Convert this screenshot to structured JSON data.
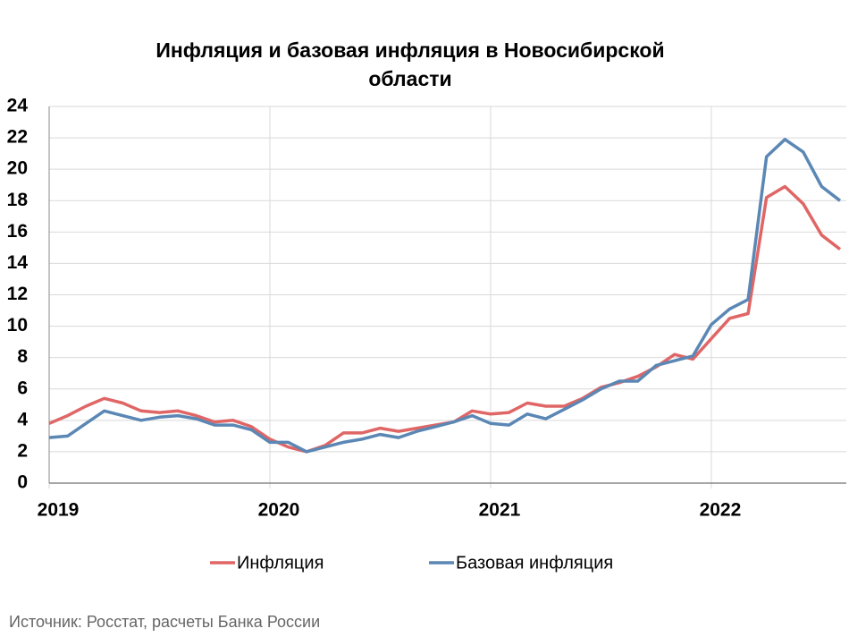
{
  "chart_data": {
    "type": "line",
    "title": [
      "Инфляция и базовая инфляция в Новосибирской",
      "области"
    ],
    "source": "Источник: Росстат, расчеты Банка России",
    "categories": [
      "2019",
      null,
      null,
      null,
      null,
      null,
      null,
      null,
      null,
      null,
      null,
      null,
      "2020",
      null,
      null,
      null,
      null,
      null,
      null,
      null,
      null,
      null,
      null,
      null,
      "2021",
      null,
      null,
      null,
      null,
      null,
      null,
      null,
      null,
      null,
      null,
      null,
      "2022",
      null,
      null,
      null,
      null,
      null,
      null,
      null
    ],
    "series": [
      {
        "name": "Инфляция",
        "color": "#e06666",
        "values": [
          3.8,
          4.3,
          4.9,
          5.4,
          5.1,
          4.6,
          4.5,
          4.6,
          4.3,
          3.9,
          4.0,
          3.6,
          2.8,
          2.3,
          2.0,
          2.4,
          3.2,
          3.2,
          3.5,
          3.3,
          3.5,
          3.7,
          3.9,
          4.6,
          4.4,
          4.5,
          5.1,
          4.9,
          4.9,
          5.4,
          6.1,
          6.4,
          6.8,
          7.4,
          8.2,
          7.9,
          9.2,
          10.5,
          10.8,
          18.2,
          18.9,
          17.8,
          15.8,
          14.9
        ]
      },
      {
        "name": "Базовая инфляция",
        "color": "#5b87b5",
        "values": [
          2.9,
          3.0,
          3.8,
          4.6,
          4.3,
          4.0,
          4.2,
          4.3,
          4.1,
          3.7,
          3.7,
          3.4,
          2.6,
          2.6,
          2.0,
          2.3,
          2.6,
          2.8,
          3.1,
          2.9,
          3.3,
          3.6,
          3.9,
          4.3,
          3.8,
          3.7,
          4.4,
          4.1,
          4.7,
          5.3,
          6.0,
          6.5,
          6.5,
          7.5,
          7.8,
          8.1,
          10.1,
          11.1,
          11.7,
          20.8,
          21.9,
          21.1,
          18.9,
          18.0
        ]
      }
    ],
    "ylim": [
      0,
      24
    ],
    "yticks": [
      0,
      2,
      4,
      6,
      8,
      10,
      12,
      14,
      16,
      18,
      20,
      22,
      24
    ],
    "grid": true,
    "legend": "bottom"
  }
}
